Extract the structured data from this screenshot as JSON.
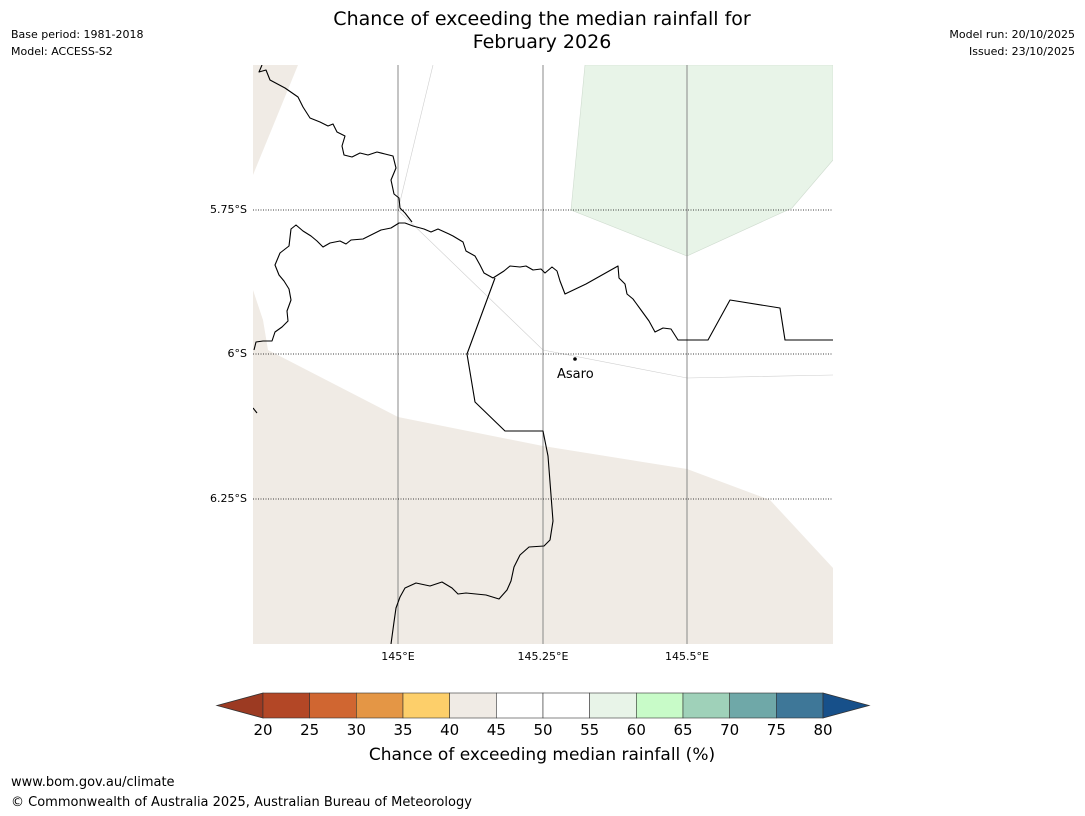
{
  "header": {
    "base_period": "Base period: 1981-2018",
    "model": "Model: ACCESS-S2",
    "model_run": "Model run: 20/10/2025",
    "issued": "Issued: 23/10/2025",
    "title_line1": "Chance of exceeding the median rainfall for",
    "title_line2": "February 2026"
  },
  "map": {
    "lat_labels": [
      "5.75°S",
      "6°S",
      "6.25°S"
    ],
    "lon_labels": [
      "145°E",
      "145.25°E",
      "145.5°E"
    ],
    "place": {
      "name": "Asaro"
    },
    "colors": {
      "border": "#000000",
      "gridline": "#888888",
      "tan_region": "#f0ebe5",
      "green_region": "#e8f4e8"
    }
  },
  "colorbar": {
    "title": "Chance of exceeding median rainfall (%)",
    "ticks": [
      "20",
      "25",
      "30",
      "35",
      "40",
      "45",
      "50",
      "55",
      "60",
      "65",
      "70",
      "75",
      "80"
    ],
    "low_extend_color": "#9c3a22",
    "high_extend_color": "#17508a",
    "bins": [
      {
        "range": "20-25",
        "color": "#b34726"
      },
      {
        "range": "25-30",
        "color": "#d06631"
      },
      {
        "range": "30-35",
        "color": "#e49645"
      },
      {
        "range": "35-40",
        "color": "#fdcf6a"
      },
      {
        "range": "40-45",
        "color": "#f0ebe5"
      },
      {
        "range": "45-50",
        "color": "#ffffff"
      },
      {
        "range": "50-55",
        "color": "#ffffff"
      },
      {
        "range": "55-60",
        "color": "#e8f4e8"
      },
      {
        "range": "60-65",
        "color": "#c8fbc8"
      },
      {
        "range": "65-70",
        "color": "#9fd1b9"
      },
      {
        "range": "70-75",
        "color": "#6fa8a8"
      },
      {
        "range": "75-80",
        "color": "#3e7798"
      }
    ]
  },
  "footer": {
    "url": "www.bom.gov.au/climate",
    "copyright": "© Commonwealth of Australia 2025, Australian Bureau of Meteorology"
  }
}
